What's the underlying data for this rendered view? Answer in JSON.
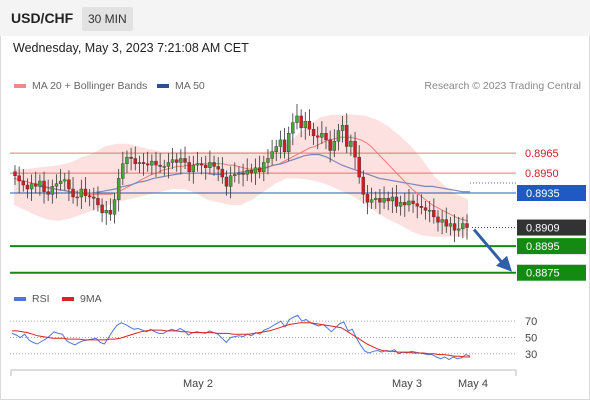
{
  "header": {
    "symbol": "USD/CHF",
    "interval": "30 MIN"
  },
  "timestamp": "Wednesday, May 3, 2023 7:21:08 AM CET",
  "legend": {
    "ma20": "MA 20 + Bollinger Bands",
    "ma50": "MA 50",
    "copyright": "Research © 2023 Trading Central"
  },
  "sub_legend": {
    "rsi": "RSI",
    "ma9": "9MA"
  },
  "colors": {
    "bull": "#44a832",
    "bear": "#d11f1f",
    "band": "#fddada",
    "ma20": "#ef7a7a",
    "ma50": "#7e87b4",
    "resistance": "#e6403d",
    "pivot": "#2159c4",
    "support": "#148a13",
    "current": "#333333",
    "rsi": "#4f77d6",
    "rsi_ma": "#dd2222",
    "arrow": "#2e5fa8"
  },
  "chart_data": [
    {
      "type": "candlestick",
      "title": "USD/CHF 30 MIN",
      "x_ticks": [
        "May 2",
        "May 3",
        "May 4"
      ],
      "ylim": [
        0.8865,
        0.9005
      ],
      "levels": [
        {
          "label": "0.8965",
          "value": 0.8965,
          "kind": "resistance"
        },
        {
          "label": "0.8950",
          "value": 0.895,
          "kind": "resistance"
        },
        {
          "label": "0.8935",
          "value": 0.8935,
          "kind": "pivot"
        },
        {
          "label": "0.8909",
          "value": 0.8909,
          "kind": "current"
        },
        {
          "label": "0.8895",
          "value": 0.8895,
          "kind": "support"
        },
        {
          "label": "0.8875",
          "value": 0.8875,
          "kind": "support"
        }
      ],
      "closes": [
        0.8948,
        0.8944,
        0.8941,
        0.8938,
        0.8942,
        0.894,
        0.8944,
        0.8936,
        0.8934,
        0.894,
        0.8942,
        0.8944,
        0.8945,
        0.8938,
        0.8932,
        0.8932,
        0.8938,
        0.8933,
        0.8932,
        0.8931,
        0.8926,
        0.892,
        0.8922,
        0.8919,
        0.893,
        0.8946,
        0.8957,
        0.8962,
        0.8961,
        0.8957,
        0.8958,
        0.8957,
        0.8956,
        0.8959,
        0.8956,
        0.8955,
        0.8955,
        0.8958,
        0.896,
        0.8958,
        0.8961,
        0.8958,
        0.8951,
        0.8956,
        0.8957,
        0.8956,
        0.8954,
        0.8958,
        0.8955,
        0.8953,
        0.8947,
        0.894,
        0.8948,
        0.8949,
        0.895,
        0.8949,
        0.8952,
        0.895,
        0.8954,
        0.8951,
        0.8958,
        0.8961,
        0.8966,
        0.897,
        0.8975,
        0.8966,
        0.898,
        0.8988,
        0.8993,
        0.8984,
        0.8989,
        0.8983,
        0.8978,
        0.8977,
        0.898,
        0.8975,
        0.8967,
        0.8974,
        0.8982,
        0.8986,
        0.897,
        0.8974,
        0.8962,
        0.8947,
        0.8934,
        0.8928,
        0.893,
        0.8931,
        0.8928,
        0.8931,
        0.8929,
        0.8932,
        0.8925,
        0.8928,
        0.8926,
        0.8929,
        0.8927,
        0.8925,
        0.8924,
        0.8922,
        0.8922,
        0.8917,
        0.8913,
        0.8915,
        0.891,
        0.8912,
        0.8907,
        0.8908,
        0.8912,
        0.8909
      ],
      "ma20": [
        0.8946,
        0.8945,
        0.8944,
        0.8943,
        0.8942,
        0.8941,
        0.894,
        0.8939,
        0.8938,
        0.8937,
        0.8937,
        0.8936,
        0.8936,
        0.8935,
        0.8934,
        0.8934,
        0.8934,
        0.8934,
        0.8934,
        0.8934,
        0.8935,
        0.8937,
        0.8939,
        0.8941,
        0.8943,
        0.8945,
        0.8947,
        0.8949,
        0.895,
        0.8952,
        0.8953,
        0.8954,
        0.8955,
        0.8955,
        0.8956,
        0.8956,
        0.8957,
        0.8957,
        0.8957,
        0.8957,
        0.8957,
        0.8957,
        0.8956,
        0.8956,
        0.8955,
        0.8954,
        0.8953,
        0.8953,
        0.8953,
        0.8954,
        0.8955,
        0.8956,
        0.8957,
        0.8959,
        0.8961,
        0.8963,
        0.8965,
        0.8967,
        0.8969,
        0.897,
        0.8972,
        0.8974,
        0.8975,
        0.8976,
        0.8977,
        0.8977,
        0.8977,
        0.8976,
        0.8975,
        0.8973,
        0.897,
        0.8966,
        0.8962,
        0.8958,
        0.8954,
        0.895,
        0.8946,
        0.8942,
        0.8938,
        0.8935,
        0.8932,
        0.8929,
        0.8926,
        0.8924,
        0.8922,
        0.892,
        0.8918,
        0.8916,
        0.8915,
        0.8914
      ],
      "ma50": [
        0.894,
        0.8939,
        0.8938,
        0.8937,
        0.8936,
        0.8935,
        0.8935,
        0.8935,
        0.8936,
        0.8937,
        0.8938,
        0.894,
        0.8941,
        0.8943,
        0.8944,
        0.8946,
        0.8947,
        0.8948,
        0.8949,
        0.895,
        0.895,
        0.895,
        0.895,
        0.8949,
        0.8949,
        0.895,
        0.895,
        0.8951,
        0.8952,
        0.8953,
        0.8954,
        0.8956,
        0.8957,
        0.8959,
        0.8961,
        0.8963,
        0.8964,
        0.8964,
        0.8962,
        0.8959,
        0.8956,
        0.8954,
        0.8952,
        0.895,
        0.8948,
        0.8946,
        0.8945,
        0.8944,
        0.8943,
        0.8942,
        0.8941,
        0.894,
        0.894,
        0.8939,
        0.8938,
        0.8937,
        0.8936,
        0.8936
      ],
      "band_upper": [
        0.8953,
        0.8953,
        0.8954,
        0.8955,
        0.8956,
        0.8958,
        0.8962,
        0.8965,
        0.897,
        0.8972,
        0.8972,
        0.897,
        0.8968,
        0.8966,
        0.8966,
        0.8966,
        0.8966,
        0.8966,
        0.8966,
        0.8966,
        0.8966,
        0.8966,
        0.8966,
        0.8968,
        0.8972,
        0.8979,
        0.8986,
        0.8992,
        0.8994,
        0.8994,
        0.8994,
        0.8993,
        0.899,
        0.8985,
        0.8978,
        0.897,
        0.896,
        0.8948,
        0.894,
        0.8934,
        0.893
      ],
      "band_lower": [
        0.8926,
        0.8922,
        0.8918,
        0.8915,
        0.8914,
        0.8916,
        0.8919,
        0.8922,
        0.8925,
        0.8928,
        0.893,
        0.8932,
        0.8934,
        0.8936,
        0.8938,
        0.8938,
        0.8935,
        0.893,
        0.8928,
        0.8926,
        0.8926,
        0.893,
        0.8936,
        0.8942,
        0.8946,
        0.8946,
        0.8945,
        0.8943,
        0.894,
        0.8936,
        0.8932,
        0.8926,
        0.892,
        0.8915,
        0.8911,
        0.8906,
        0.8903,
        0.8902,
        0.8902,
        0.8902,
        0.8902
      ]
    },
    {
      "type": "line",
      "title": "RSI",
      "y_ticks": [
        70,
        50,
        30
      ],
      "ylim": [
        15,
        80
      ],
      "series": [
        {
          "name": "RSI",
          "values": [
            55,
            53,
            50,
            54,
            47,
            44,
            42,
            45,
            48,
            52,
            57,
            55,
            54,
            46,
            43,
            41,
            44,
            46,
            47,
            48,
            49,
            44,
            42,
            50,
            58,
            65,
            68,
            66,
            63,
            60,
            61,
            59,
            57,
            60,
            57,
            55,
            55,
            58,
            60,
            58,
            61,
            58,
            53,
            56,
            57,
            56,
            55,
            58,
            56,
            54,
            49,
            44,
            50,
            51,
            52,
            51,
            54,
            52,
            56,
            54,
            59,
            61,
            64,
            67,
            70,
            63,
            72,
            75,
            77,
            70,
            72,
            68,
            66,
            64,
            66,
            62,
            57,
            62,
            67,
            69,
            58,
            60,
            49,
            40,
            33,
            31,
            33,
            34,
            32,
            34,
            33,
            35,
            30,
            32,
            31,
            33,
            32,
            31,
            30,
            29,
            29,
            26,
            24,
            26,
            23,
            26,
            24,
            25,
            29,
            27
          ]
        },
        {
          "name": "9MA",
          "values": [
            58,
            58,
            57,
            56,
            54,
            52,
            51,
            50,
            49,
            49,
            49,
            48,
            48,
            48,
            47,
            47,
            47,
            47,
            47,
            48,
            48,
            49,
            51,
            53,
            55,
            57,
            58,
            59,
            59,
            59,
            58,
            58,
            58,
            57,
            57,
            56,
            56,
            56,
            56,
            56,
            55,
            55,
            55,
            54,
            54,
            54,
            54,
            55,
            56,
            57,
            58,
            60,
            62,
            64,
            66,
            67,
            68,
            68,
            68,
            67,
            66,
            65,
            64,
            63,
            62,
            58,
            54,
            50,
            46,
            42,
            39,
            36,
            34,
            33,
            33,
            32,
            32,
            32,
            31,
            31,
            31,
            30,
            30,
            29,
            29,
            28,
            27,
            27,
            26,
            26
          ]
        }
      ]
    }
  ]
}
